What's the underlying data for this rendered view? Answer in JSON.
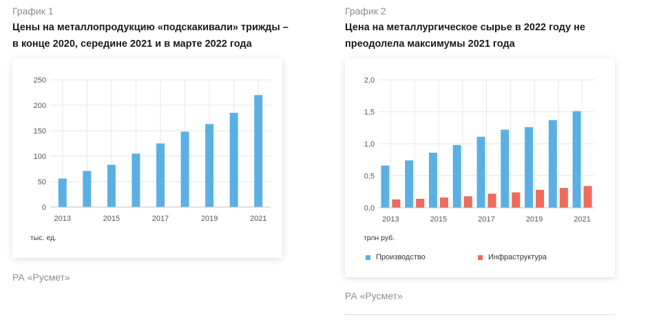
{
  "charts": [
    {
      "label": "График 1",
      "title_lines": [
        "Цены на металлопродукцию «подскакивали» трижды –",
        "в конце 2020, середине 2021 и в марте 2022 года"
      ],
      "unit": "тыс. ед.",
      "source": "РА «Русмет»"
    },
    {
      "label": "График 2",
      "title_lines": [
        "Цена на металлургическое сырье в 2022 году не",
        "преодолела максимумы 2021 года"
      ],
      "unit": "трлн руб.",
      "source": "РА «Русмет»"
    }
  ],
  "chart_data": [
    {
      "type": "bar",
      "categories": [
        "2013",
        "2014",
        "2015",
        "2016",
        "2017",
        "2018",
        "2019",
        "2020",
        "2021"
      ],
      "tick_labels": [
        "2013",
        "",
        "2015",
        "",
        "2017",
        "",
        "2019",
        "",
        "2021"
      ],
      "values": [
        56,
        71,
        83,
        105,
        125,
        148,
        163,
        185,
        220
      ],
      "ylim": [
        0,
        250
      ],
      "yticks": [
        "0",
        "50",
        "100",
        "150",
        "200",
        "250"
      ],
      "grid": true,
      "colors": {
        "bar": "#5ab0e3",
        "grid": "#e6e6e6",
        "axis": "#bfbfbf",
        "text": "#555555"
      }
    },
    {
      "type": "bar",
      "categories": [
        "2013",
        "2014",
        "2015",
        "2016",
        "2017",
        "2018",
        "2019",
        "2020",
        "2021"
      ],
      "tick_labels": [
        "2013",
        "",
        "2015",
        "",
        "2017",
        "",
        "2019",
        "",
        "2021"
      ],
      "series": [
        {
          "name": "Производство",
          "values": [
            0.66,
            0.74,
            0.86,
            0.98,
            1.11,
            1.22,
            1.26,
            1.37,
            1.51
          ],
          "color": "#5ab0e3"
        },
        {
          "name": "Инфраструктура",
          "values": [
            0.13,
            0.14,
            0.16,
            0.18,
            0.22,
            0.24,
            0.28,
            0.31,
            0.34
          ],
          "color": "#ef6b5b"
        }
      ],
      "ylim": [
        0,
        2.0
      ],
      "yticks": [
        "0,0",
        "0,5",
        "1,0",
        "1,5",
        "2,0"
      ],
      "grid": true,
      "legend_position": "bottom-left",
      "colors": {
        "grid": "#e6e6e6",
        "axis": "#bfbfbf",
        "text": "#555555"
      }
    }
  ]
}
